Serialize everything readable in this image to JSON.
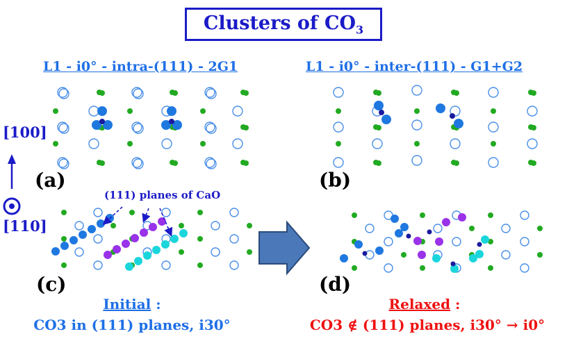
{
  "title": "Clusters of CO",
  "title_sub": "3",
  "panels": {
    "a": {
      "letter": "(a)",
      "heading": "L1 - i0° - intra-(111) - 2G1"
    },
    "b": {
      "letter": "(b)",
      "heading": "L1 - i0° - inter-(111) - G1+G2"
    },
    "c": {
      "letter": "(c)",
      "annotation": "(111) planes of CaO",
      "caption_word": "Initial",
      "caption_colon": " :",
      "caption_line2": "CO3 in (111) planes, i30°"
    },
    "d": {
      "letter": "(d)",
      "caption_word": "Relaxed",
      "caption_colon": " :",
      "caption_line2": "CO3 ∉ (111) planes, i30° → i0°"
    }
  },
  "axes": {
    "up": "[100]",
    "out": "[110]"
  },
  "colors": {
    "blue_text": "#1e6fe6",
    "title_blue": "#1b1bc8",
    "red_text": "#ee1111",
    "green_atom": "#22aa22",
    "open_atom": "#4a8fe8",
    "filled_blue": "#1f78e0",
    "dark_blue": "#1a1aa0",
    "purple": "#9932e8",
    "cyan": "#1ad6dc",
    "arrow_fill": "#4a78b8",
    "arrow_stroke": "#2b4a7a"
  },
  "icons": [
    "up-arrow-icon",
    "out-of-plane-icon",
    "transition-arrow-icon"
  ]
}
